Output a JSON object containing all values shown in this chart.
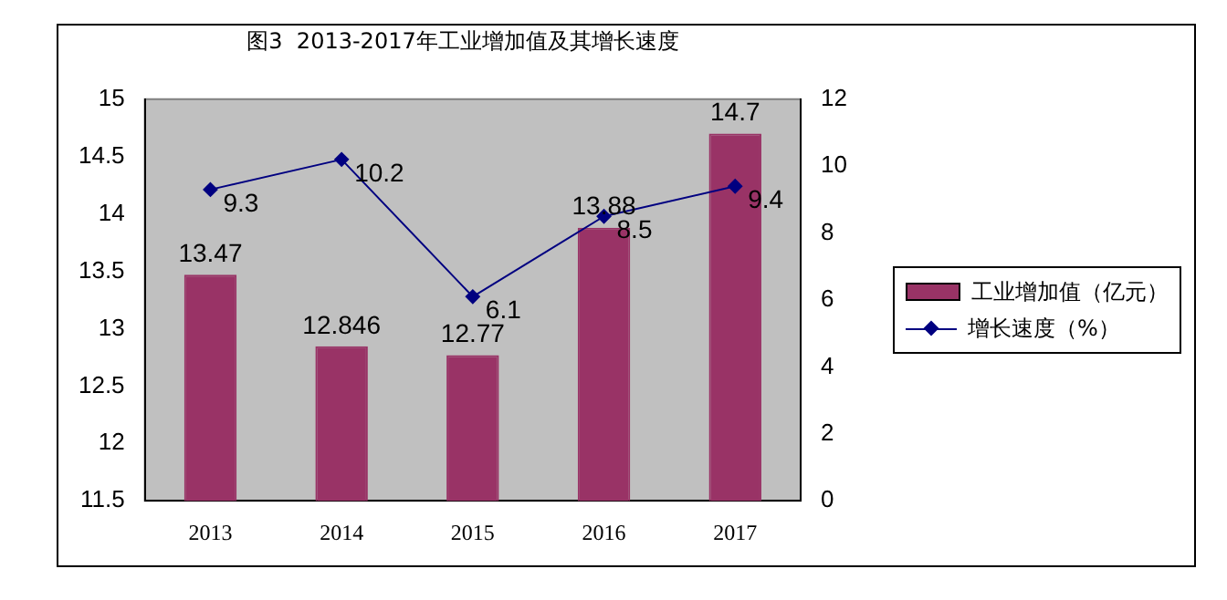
{
  "chart_data": {
    "type": "bar",
    "title": "图3  2013-2017年工业增加值及其增长速度",
    "categories": [
      "2013",
      "2014",
      "2015",
      "2016",
      "2017"
    ],
    "series": [
      {
        "name": "工业增加值（亿元）",
        "color": "#993366",
        "values": [
          13.47,
          12.846,
          12.77,
          13.88,
          14.7
        ]
      },
      {
        "name": "增长速度（%）",
        "type": "line",
        "axis": "y2",
        "color": "#000080",
        "values": [
          9.3,
          10.2,
          6.1,
          8.5,
          9.4
        ]
      }
    ],
    "ylim": [
      11.5,
      15
    ],
    "yticks": [
      11.5,
      12,
      12.5,
      13,
      13.5,
      14,
      14.5,
      15
    ],
    "y2lim": [
      0,
      12
    ],
    "y2ticks": [
      0,
      2,
      4,
      6,
      8,
      10,
      12
    ],
    "grid": false,
    "legend": "right",
    "marker": "diamond",
    "line_style": "solid",
    "data_labels": true
  }
}
